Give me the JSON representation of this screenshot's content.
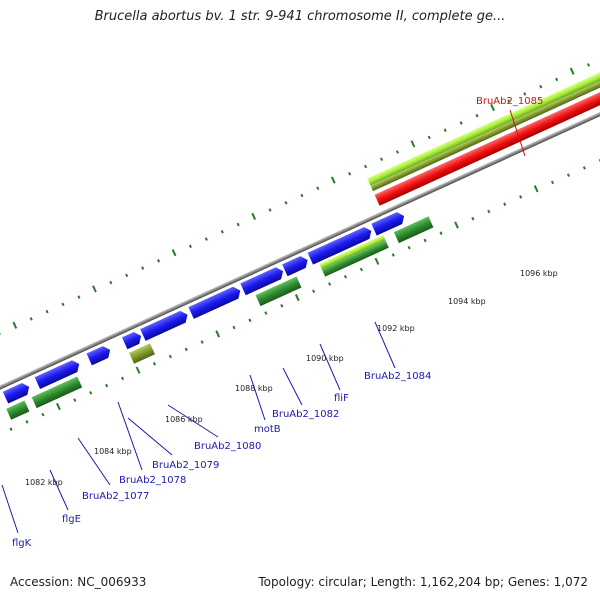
{
  "title": "Brucella abortus bv. 1 str. 9-941 chromosome II, complete ge...",
  "footer": {
    "accession": "Accession: NC_006933",
    "summary": "Topology: circular; Length: 1,162,204 bp; Genes: 1,072"
  },
  "colors": {
    "forward_cds": "#1a1aee",
    "reverse_cds": "#2e8b2e",
    "highlight_cds": "#ee1111",
    "light_feature": "#9ee33a",
    "olive_feature": "#7f9a2a",
    "backbone": "#888888",
    "tick": "#2a7a2a",
    "gene_label": "#1a1aaa",
    "highlight_label": "#cc1111"
  },
  "kbp_labels": [
    "1082 kbp",
    "1084 kbp",
    "1086 kbp",
    "1088 kbp",
    "1090 kbp",
    "1092 kbp",
    "1094 kbp",
    "1096 kbp"
  ],
  "gene_labels": [
    "flgK",
    "flgE",
    "BruAb2_1077",
    "BruAb2_1078",
    "BruAb2_1079",
    "BruAb2_1080",
    "motB",
    "BruAb2_1082",
    "fliF",
    "BruAb2_1084",
    "BruAb2_1085"
  ]
}
